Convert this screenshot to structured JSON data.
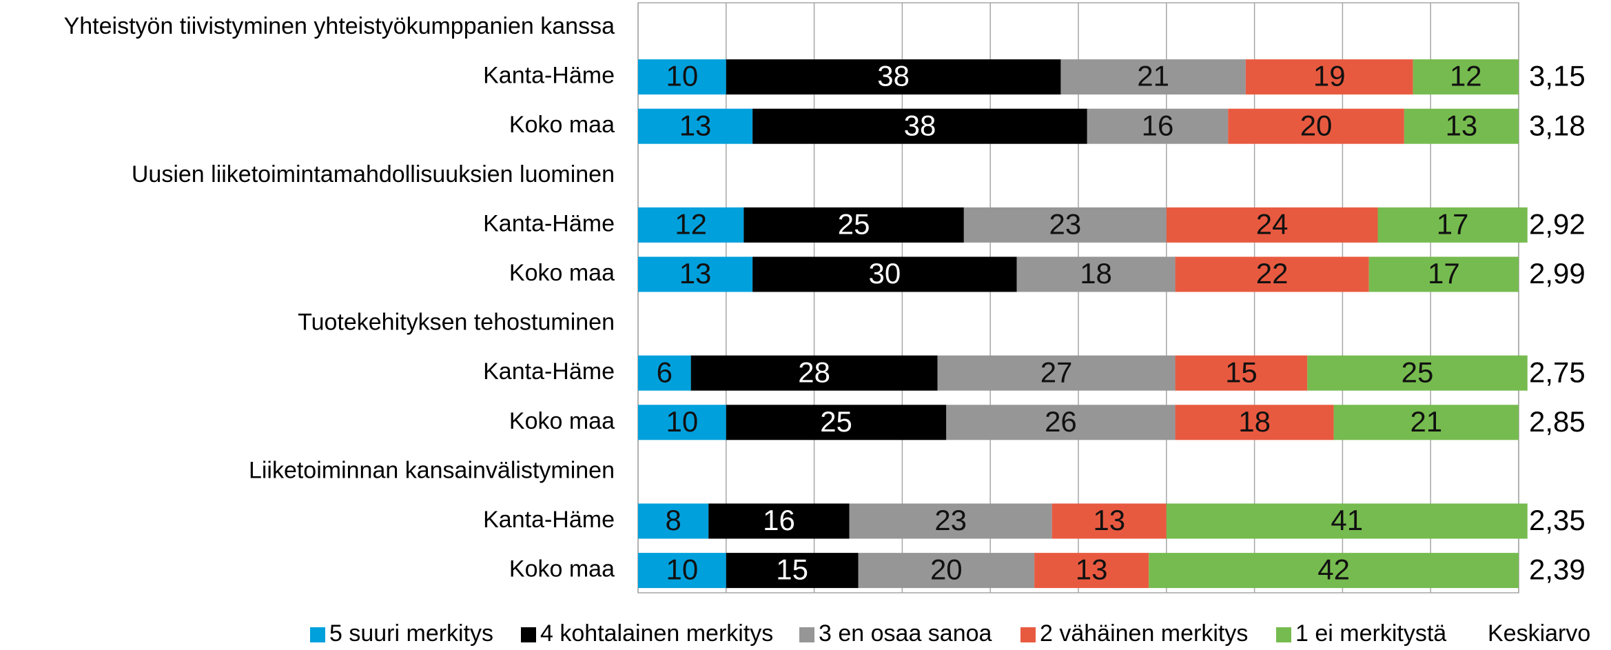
{
  "chart_data": {
    "type": "stacked-bar-horizontal",
    "categories": [
      "Yhteistyön tiivistyminen yhteistyökumppanien kanssa",
      "Kanta-Häme",
      "Koko maa",
      "Uusien liiketoimintamahdollisuuksien luominen",
      "Kanta-Häme",
      "Koko maa",
      "Tuotekehityksen tehostuminen",
      "Kanta-Häme",
      "Koko maa",
      "Liiketoiminnan kansainvälistyminen",
      "Kanta-Häme",
      "Koko maa"
    ],
    "series": [
      {
        "name": "5 suuri merkitys",
        "color": "#00a0dc",
        "values": [
          null,
          10,
          13,
          null,
          12,
          13,
          null,
          6,
          10,
          null,
          8,
          10
        ]
      },
      {
        "name": "4 kohtalainen merkitys",
        "color": "#000000",
        "values": [
          null,
          38,
          38,
          null,
          25,
          30,
          null,
          28,
          25,
          null,
          16,
          15
        ]
      },
      {
        "name": "3 en osaa sanoa",
        "color": "#969696",
        "values": [
          null,
          21,
          16,
          null,
          23,
          18,
          null,
          27,
          26,
          null,
          23,
          20
        ]
      },
      {
        "name": "2 vähäinen merkitys",
        "color": "#e85a40",
        "values": [
          null,
          19,
          20,
          null,
          24,
          22,
          null,
          15,
          18,
          null,
          13,
          13
        ]
      },
      {
        "name": "1 ei merkitystä",
        "color": "#76bb4f",
        "values": [
          null,
          12,
          13,
          null,
          17,
          17,
          null,
          25,
          21,
          null,
          41,
          42
        ]
      }
    ],
    "averages": {
      "name": "Keskiarvo",
      "values": [
        null,
        3.15,
        3.18,
        null,
        2.92,
        2.99,
        null,
        2.75,
        2.85,
        null,
        2.35,
        2.39
      ],
      "value_labels": [
        null,
        "3,15",
        "3,18",
        null,
        "2,92",
        "2,99",
        null,
        "2,75",
        "2,85",
        null,
        "2,35",
        "2,39"
      ]
    },
    "xlim": [
      0,
      100
    ],
    "xticks": [
      0,
      10,
      20,
      30,
      40,
      50,
      60,
      70,
      80,
      90,
      100
    ],
    "grid": true,
    "legend": "bottom"
  }
}
